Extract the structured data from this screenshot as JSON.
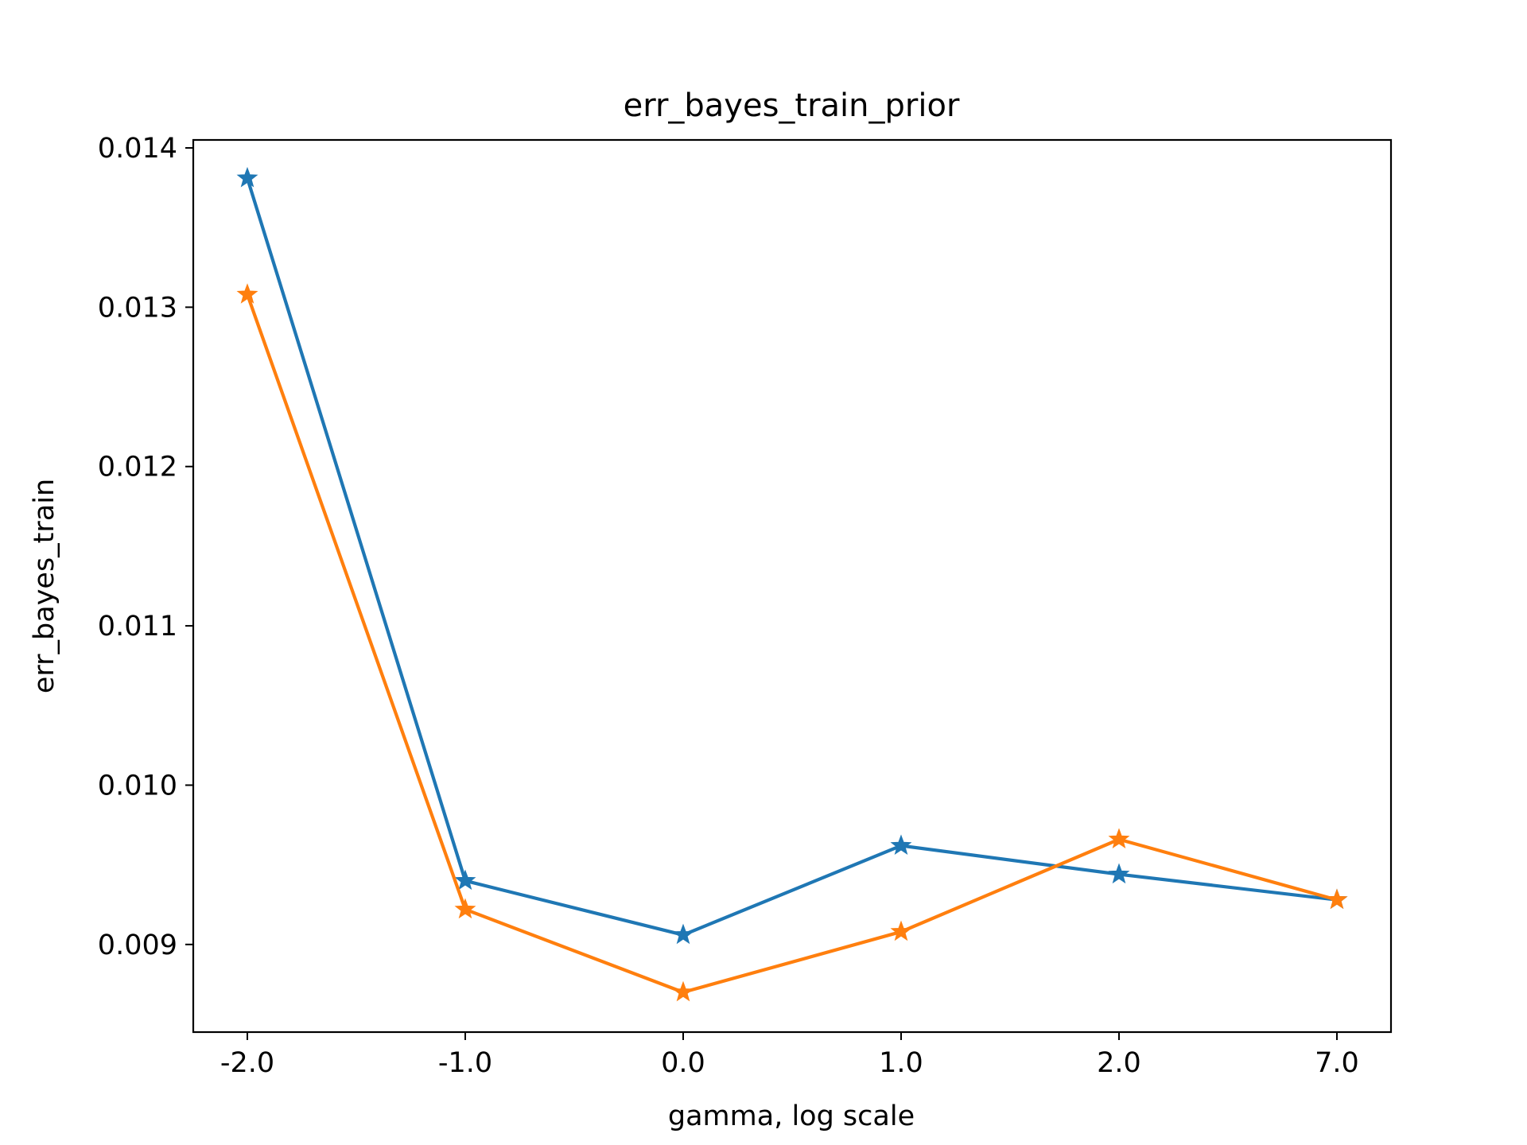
{
  "chart_data": {
    "type": "line",
    "title": "err_bayes_train_prior",
    "xlabel": "gamma, log scale",
    "ylabel": "err_bayes_train",
    "categories": [
      "-2.0",
      "-1.0",
      "0.0",
      "1.0",
      "2.0",
      "7.0"
    ],
    "y_ticks": [
      "0.009",
      "0.010",
      "0.011",
      "0.012",
      "0.013",
      "0.014"
    ],
    "ylim": [
      0.00845,
      0.01405
    ],
    "marker": "star",
    "grid": false,
    "legend": "none",
    "series": [
      {
        "color": "#1f77b4",
        "values": [
          0.01381,
          0.0094,
          0.00906,
          0.00962,
          0.00944,
          0.00928
        ]
      },
      {
        "color": "#ff7f0e",
        "values": [
          0.01308,
          0.00922,
          0.0087,
          0.00908,
          0.00966,
          0.00928
        ]
      }
    ]
  }
}
